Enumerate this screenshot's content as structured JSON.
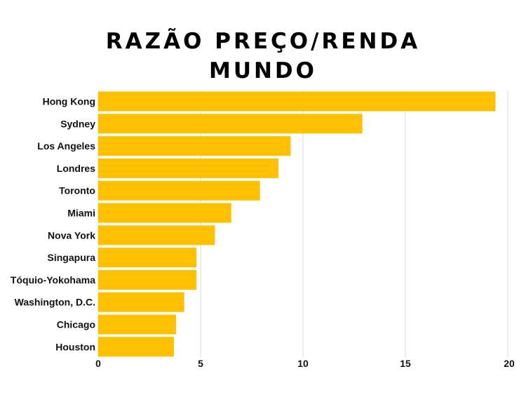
{
  "chart_data": {
    "type": "bar",
    "orientation": "horizontal",
    "title_lines": [
      "RAZÃO PREÇO/RENDA",
      "MUNDO"
    ],
    "categories": [
      "Hong Kong",
      "Sydney",
      "Los Angeles",
      "Londres",
      "Toronto",
      "Miami",
      "Nova York",
      "Singapura",
      "Tóquio-Yokohama",
      "Washington, D.C.",
      "Chicago",
      "Houston"
    ],
    "values": [
      19.4,
      12.9,
      9.4,
      8.8,
      7.9,
      6.5,
      5.7,
      4.8,
      4.8,
      4.2,
      3.8,
      3.7
    ],
    "xlim": [
      0,
      20
    ],
    "xticks": [
      "0",
      "5",
      "10",
      "15",
      "20"
    ],
    "grid": true,
    "bar_color": "#FFC000",
    "grid_color": "#D9D9D9"
  }
}
